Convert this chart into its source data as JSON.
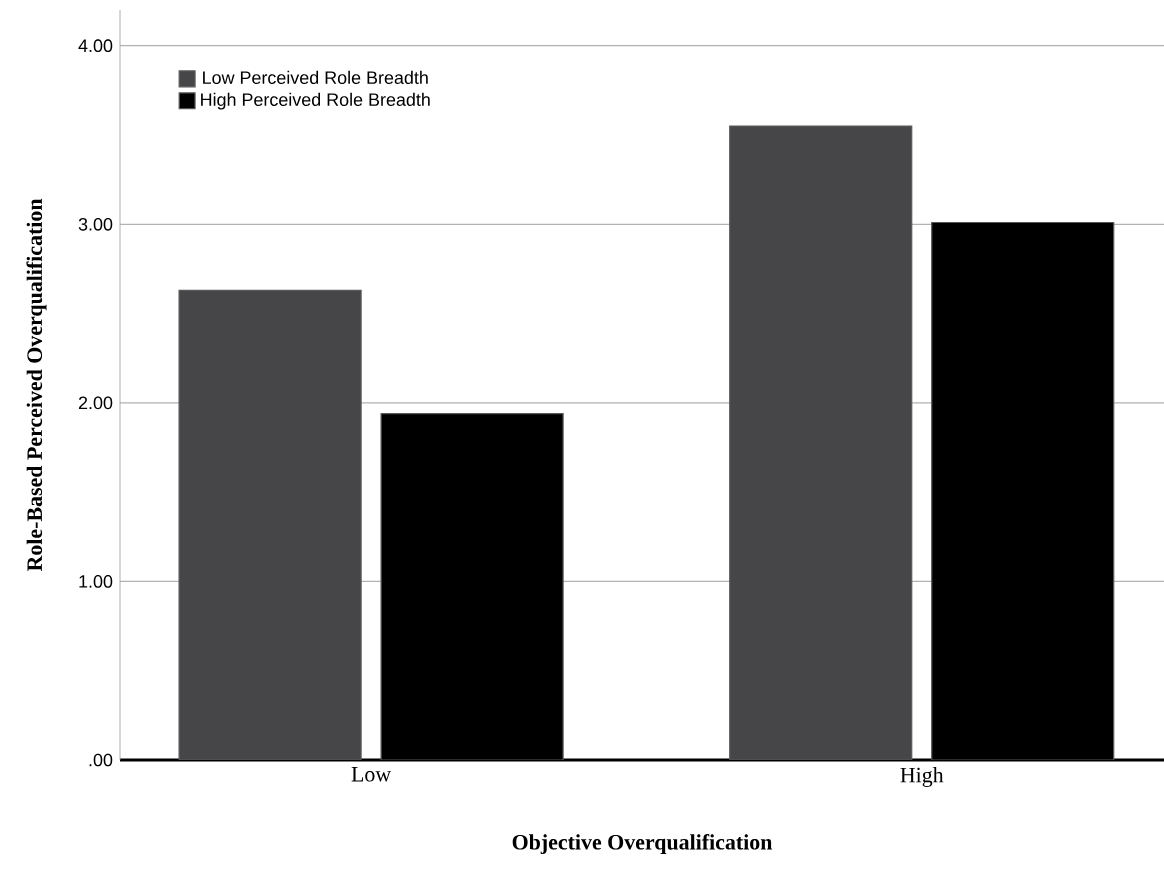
{
  "chart_data": {
    "type": "bar",
    "xlabel": "Objective Overqualification",
    "ylabel": "Role-Based Perceived Overqualification",
    "categories": [
      "Low",
      "High"
    ],
    "series": [
      {
        "name": "Low Perceived Role Breadth",
        "color": "#464648",
        "values": [
          2.63,
          3.55
        ]
      },
      {
        "name": "High Perceived Role Breadth",
        "color": "#000000",
        "values": [
          1.94,
          3.01
        ]
      }
    ],
    "ylim": [
      0,
      4.2
    ],
    "yticks": [
      {
        "value": 0,
        "label": ".00"
      },
      {
        "value": 1,
        "label": "1.00"
      },
      {
        "value": 2,
        "label": "2.00"
      },
      {
        "value": 3,
        "label": "3.00"
      },
      {
        "value": 4,
        "label": "4.00"
      }
    ],
    "grid": "y",
    "legend": "top left"
  }
}
